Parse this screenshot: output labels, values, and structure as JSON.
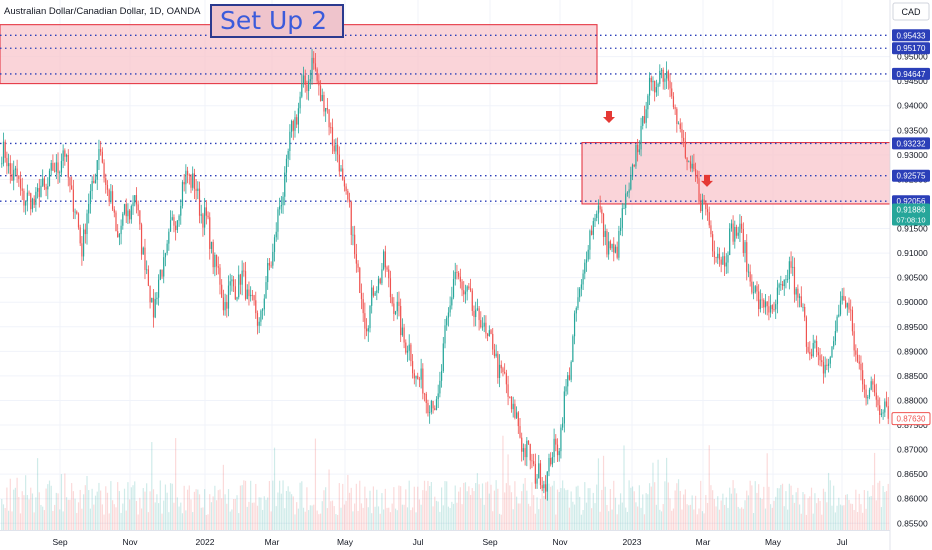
{
  "header": {
    "symbol_title": "Australian Dollar/Canadian Dollar, 1D, OANDA",
    "currency": "CAD"
  },
  "annotation": {
    "label": "Set Up 2"
  },
  "colors": {
    "up_candle": "#26a69a",
    "down_candle": "#ef5350",
    "zone_fill": "#f8c5cc",
    "zone_border": "#e53945",
    "level_line": "#2b3fb8",
    "arrow": "#e53935",
    "last_price_badge": "#26a69a",
    "current_price_border": "#ef5350"
  },
  "chart_data": {
    "type": "candlestick",
    "y_axis_ticks": [
      "0.95000",
      "0.94500",
      "0.94000",
      "0.93500",
      "0.93000",
      "0.92500",
      "0.92000",
      "0.91500",
      "0.91000",
      "0.90500",
      "0.90000",
      "0.89500",
      "0.89000",
      "0.88500",
      "0.88000",
      "0.87500",
      "0.87000",
      "0.86500",
      "0.86000",
      "0.85500"
    ],
    "ylim": [
      0.852,
      0.9605
    ],
    "x_axis_labels": [
      "Sep",
      "Nov",
      "2022",
      "Mar",
      "May",
      "Jul",
      "Sep",
      "Nov",
      "2023",
      "Mar",
      "May",
      "Jul"
    ],
    "price_levels": [
      {
        "label": "0.95433",
        "value": 0.95433
      },
      {
        "label": "0.95170",
        "value": 0.9517
      },
      {
        "label": "0.94647",
        "value": 0.94647
      },
      {
        "label": "0.93232",
        "value": 0.93232
      },
      {
        "label": "0.92575",
        "value": 0.92575
      },
      {
        "label": "0.92056",
        "value": 0.92056
      }
    ],
    "zones": [
      {
        "name": "upper-supply-zone",
        "start": "Jul 2021",
        "end": "Nov 2022",
        "top": 0.9565,
        "bottom": 0.9445
      },
      {
        "name": "lower-supply-zone",
        "start": "Nov 2022",
        "end": "Aug 2023",
        "top": 0.9325,
        "bottom": 0.92
      }
    ],
    "last_price": {
      "label": "0.91886",
      "value": 0.91886,
      "countdown": "07:08:10"
    },
    "current_price": {
      "label": "0.87630",
      "value": 0.8763
    },
    "arrows": [
      {
        "date": "Dec 2022",
        "price": 0.9375
      },
      {
        "date": "Mar 2023",
        "price": 0.9245
      }
    ],
    "close_path": [
      [
        "Jul 2021",
        0.9305
      ],
      [
        "Aug 2021",
        0.92
      ],
      [
        "Aug 2021",
        0.9235
      ],
      [
        "Sep 2021",
        0.9305
      ],
      [
        "Sep 2021",
        0.9115
      ],
      [
        "Oct 2021",
        0.9315
      ],
      [
        "Oct 2021",
        0.9135
      ],
      [
        "Nov 2021",
        0.9215
      ],
      [
        "Nov 2021",
        0.8985
      ],
      [
        "Dec 2021",
        0.9135
      ],
      [
        "Dec 2021",
        0.927
      ],
      [
        "Jan 2022",
        0.9165
      ],
      [
        "Jan 2022",
        0.9005
      ],
      [
        "Feb 2022",
        0.905
      ],
      [
        "Feb 2022",
        0.8955
      ],
      [
        "Mar 2022",
        0.915
      ],
      [
        "Mar 2022",
        0.9375
      ],
      [
        "Apr 2022",
        0.9485
      ],
      [
        "Apr 2022",
        0.9365
      ],
      [
        "May 2022",
        0.92
      ],
      [
        "May 2022",
        0.896
      ],
      [
        "Jun 2022",
        0.908
      ],
      [
        "Jun 2022",
        0.895
      ],
      [
        "Jul 2022",
        0.884
      ],
      [
        "Jul 2022",
        0.878
      ],
      [
        "Aug 2022",
        0.906
      ],
      [
        "Aug 2022",
        0.899
      ],
      [
        "Sep 2022",
        0.8925
      ],
      [
        "Sep 2022",
        0.882
      ],
      [
        "Oct 2022",
        0.87
      ],
      [
        "Oct 2022",
        0.863
      ],
      [
        "Nov 2022",
        0.873
      ],
      [
        "Nov 2022",
        0.9
      ],
      [
        "Dec 2022",
        0.92
      ],
      [
        "Dec 2022",
        0.9085
      ],
      [
        "Jan 2023",
        0.925
      ],
      [
        "Jan 2023",
        0.943
      ],
      [
        "Feb 2023",
        0.948
      ],
      [
        "Feb 2023",
        0.93
      ],
      [
        "Mar 2023",
        0.921
      ],
      [
        "Mar 2023",
        0.908
      ],
      [
        "Apr 2023",
        0.916
      ],
      [
        "Apr 2023",
        0.901
      ],
      [
        "May 2023",
        0.898
      ],
      [
        "May 2023",
        0.907
      ],
      [
        "Jun 2023",
        0.892
      ],
      [
        "Jun 2023",
        0.8855
      ],
      [
        "Jul 2023",
        0.9025
      ],
      [
        "Jul 2023",
        0.884
      ],
      [
        "Aug 2023",
        0.878
      ]
    ]
  }
}
